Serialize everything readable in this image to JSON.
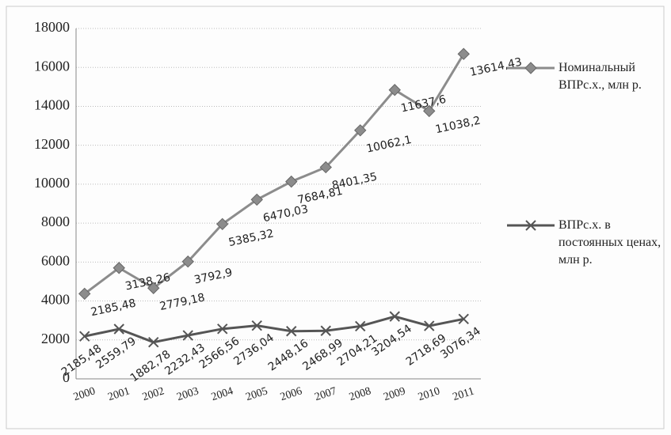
{
  "chart_data": {
    "type": "line",
    "stacked": true,
    "categories": [
      "2000",
      "2001",
      "2002",
      "2003",
      "2004",
      "2005",
      "2006",
      "2007",
      "2008",
      "2009",
      "2010",
      "2011"
    ],
    "series": [
      {
        "name": "Номинальный ВПРс.х., млн р.",
        "color": "#8c8c8c",
        "marker": "diamond",
        "values": [
          2185.48,
          3138.26,
          2779.18,
          3792.9,
          5385.32,
          6470.03,
          7684.81,
          8401.35,
          10062.1,
          11637.6,
          11038.2,
          13614.43
        ],
        "value_labels": [
          "2185,48",
          "3138,26",
          "2779,18",
          "3792,9",
          "5385,32",
          "6470,03",
          "7684,81",
          "8401,35",
          "10062,1",
          "11637,6",
          "11038,2",
          "13614,43"
        ]
      },
      {
        "name": "ВПРс.х. в постоянных ценах, млн р.",
        "color": "#555555",
        "marker": "x",
        "values": [
          2185.48,
          2559.79,
          1882.78,
          2232.43,
          2566.56,
          2736.04,
          2448.16,
          2468.99,
          2704.21,
          3204.54,
          2718.69,
          3076.34
        ],
        "value_labels": [
          "2185,48",
          "2559,79",
          "1882,78",
          "2232,43",
          "2566,56",
          "2736,04",
          "2448,16",
          "2468,99",
          "2704,21",
          "3204,54",
          "2718,69",
          "3076,34"
        ]
      }
    ],
    "ylim": [
      0,
      18000
    ],
    "yticks": [
      0,
      2000,
      4000,
      6000,
      8000,
      10000,
      12000,
      14000,
      16000,
      18000
    ],
    "grid": true,
    "legend": "right"
  }
}
